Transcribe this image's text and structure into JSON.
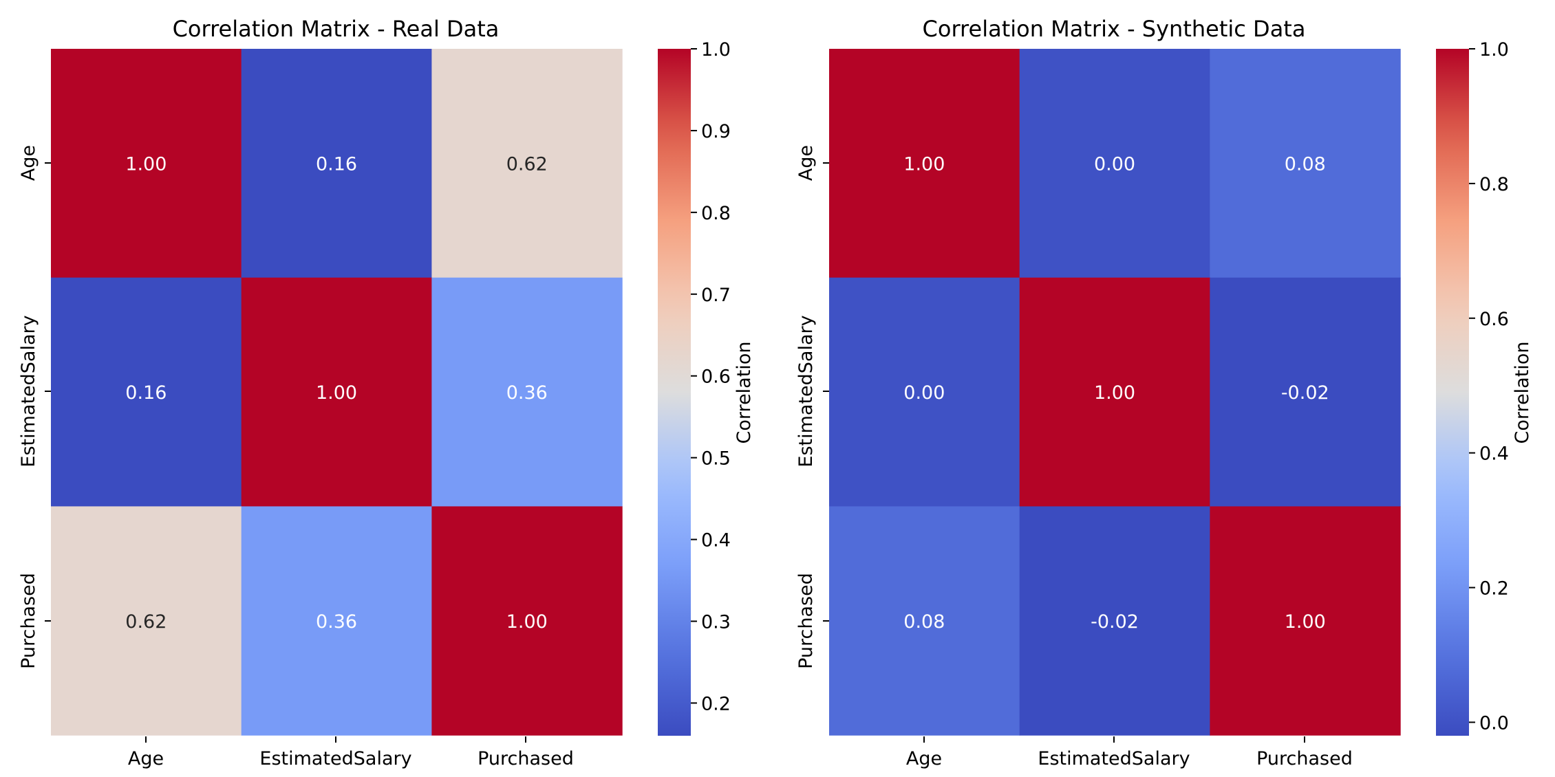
{
  "chart_data": [
    {
      "type": "heatmap",
      "title": "Correlation Matrix - Real Data",
      "xlabel": "",
      "ylabel": "",
      "x_categories": [
        "Age",
        "EstimatedSalary",
        "Purchased"
      ],
      "y_categories": [
        "Age",
        "EstimatedSalary",
        "Purchased"
      ],
      "values": [
        [
          1.0,
          0.16,
          0.62
        ],
        [
          0.16,
          1.0,
          0.36
        ],
        [
          0.62,
          0.36,
          1.0
        ]
      ],
      "value_labels": [
        [
          "1.00",
          "0.16",
          "0.62"
        ],
        [
          "0.16",
          "1.00",
          "0.36"
        ],
        [
          "0.62",
          "0.36",
          "1.00"
        ]
      ],
      "colormap": "coolwarm",
      "vmin": 0.16,
      "vmax": 1.0,
      "colorbar": {
        "label": "Correlation",
        "ticks": [
          0.2,
          0.3,
          0.4,
          0.5,
          0.6,
          0.7,
          0.8,
          0.9,
          1.0
        ],
        "tick_labels": [
          "0.2",
          "0.3",
          "0.4",
          "0.5",
          "0.6",
          "0.7",
          "0.8",
          "0.9",
          "1.0"
        ]
      }
    },
    {
      "type": "heatmap",
      "title": "Correlation Matrix - Synthetic Data",
      "xlabel": "",
      "ylabel": "",
      "x_categories": [
        "Age",
        "EstimatedSalary",
        "Purchased"
      ],
      "y_categories": [
        "Age",
        "EstimatedSalary",
        "Purchased"
      ],
      "values": [
        [
          1.0,
          0.0,
          0.08
        ],
        [
          0.0,
          1.0,
          -0.02
        ],
        [
          0.08,
          -0.02,
          1.0
        ]
      ],
      "value_labels": [
        [
          "1.00",
          "0.00",
          "0.08"
        ],
        [
          "0.00",
          "1.00",
          "-0.02"
        ],
        [
          "0.08",
          "-0.02",
          "1.00"
        ]
      ],
      "colormap": "coolwarm",
      "vmin": -0.02,
      "vmax": 1.0,
      "colorbar": {
        "label": "Correlation",
        "ticks": [
          0.0,
          0.2,
          0.4,
          0.6,
          0.8,
          1.0
        ],
        "tick_labels": [
          "0.0",
          "0.2",
          "0.4",
          "0.6",
          "0.8",
          "1.0"
        ]
      }
    }
  ]
}
